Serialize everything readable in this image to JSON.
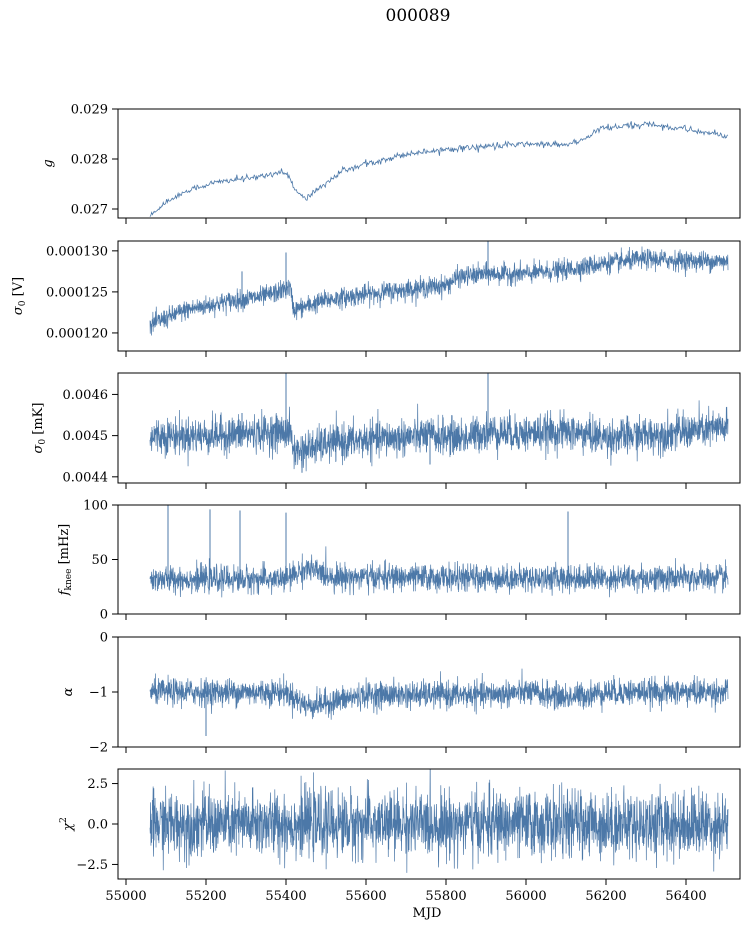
{
  "title": "000089",
  "series_color": "#4c78a8",
  "chart_data": [
    {
      "type": "line",
      "ylabel": "g",
      "ylabel_html": "<tspan font-style='italic'>g</tspan>",
      "xlim": [
        54980,
        56535
      ],
      "ylim": [
        0.02682,
        0.029
      ],
      "yticks": [
        0.027,
        0.028,
        0.029
      ],
      "ytick_labels": [
        "0.027",
        "0.028",
        "0.029"
      ],
      "show_xtick_labels": false,
      "data_x_range": [
        55060,
        56505
      ],
      "trend": [
        [
          55060,
          0.02685
        ],
        [
          55100,
          0.02715
        ],
        [
          55150,
          0.02735
        ],
        [
          55200,
          0.02748
        ],
        [
          55250,
          0.02757
        ],
        [
          55300,
          0.0276
        ],
        [
          55350,
          0.02768
        ],
        [
          55400,
          0.02775
        ],
        [
          55430,
          0.0273
        ],
        [
          55450,
          0.0272
        ],
        [
          55480,
          0.0274
        ],
        [
          55550,
          0.0278
        ],
        [
          55600,
          0.0279
        ],
        [
          55700,
          0.0281
        ],
        [
          55800,
          0.0282
        ],
        [
          55900,
          0.02825
        ],
        [
          56000,
          0.0283
        ],
        [
          56100,
          0.02828
        ],
        [
          56150,
          0.0284
        ],
        [
          56180,
          0.0286
        ],
        [
          56250,
          0.02866
        ],
        [
          56300,
          0.0287
        ],
        [
          56400,
          0.0286
        ],
        [
          56505,
          0.02845
        ]
      ],
      "noise": 3e-05,
      "density": "sparse"
    },
    {
      "type": "line",
      "ylabel": "σ0 [V]",
      "xlim": [
        54980,
        56535
      ],
      "ylim": [
        0.0001178,
        0.0001312
      ],
      "yticks": [
        0.00012,
        0.000125,
        0.00013
      ],
      "ytick_labels": [
        "0.000120",
        "0.000125",
        "0.000130"
      ],
      "show_xtick_labels": false,
      "data_x_range": [
        55060,
        56505
      ],
      "trend": [
        [
          55060,
          0.000121
        ],
        [
          55150,
          0.0001228
        ],
        [
          55250,
          0.0001238
        ],
        [
          55350,
          0.0001245
        ],
        [
          55410,
          0.0001255
        ],
        [
          55420,
          0.0001228
        ],
        [
          55500,
          0.000124
        ],
        [
          55600,
          0.0001247
        ],
        [
          55700,
          0.0001253
        ],
        [
          55800,
          0.0001258
        ],
        [
          55830,
          0.0001268
        ],
        [
          55900,
          0.0001272
        ],
        [
          56000,
          0.0001272
        ],
        [
          56100,
          0.0001277
        ],
        [
          56200,
          0.0001285
        ],
        [
          56300,
          0.000129
        ],
        [
          56400,
          0.0001288
        ],
        [
          56505,
          0.0001287
        ]
      ],
      "noise": 6e-07,
      "density": "dense",
      "spikes": [
        [
          55290,
          0.0001275
        ],
        [
          55400,
          0.0001298
        ],
        [
          55905,
          0.0001312
        ]
      ]
    },
    {
      "type": "line",
      "ylabel": "σ0 [mK]",
      "xlim": [
        54980,
        56535
      ],
      "ylim": [
        0.004385,
        0.004652
      ],
      "yticks": [
        0.0044,
        0.0045,
        0.0046
      ],
      "ytick_labels": [
        "0.0044",
        "0.0045",
        "0.0046"
      ],
      "show_xtick_labels": false,
      "data_x_range": [
        55060,
        56505
      ],
      "trend": [
        [
          55060,
          0.0045
        ],
        [
          55200,
          0.0045
        ],
        [
          55300,
          0.004505
        ],
        [
          55410,
          0.00451
        ],
        [
          55420,
          0.00446
        ],
        [
          55500,
          0.00448
        ],
        [
          55600,
          0.00449
        ],
        [
          55750,
          0.0045
        ],
        [
          55850,
          0.004495
        ],
        [
          55900,
          0.00451
        ],
        [
          56000,
          0.004505
        ],
        [
          56100,
          0.00451
        ],
        [
          56200,
          0.004495
        ],
        [
          56350,
          0.004505
        ],
        [
          56505,
          0.00452
        ]
      ],
      "noise": 2.2e-05,
      "density": "dense",
      "spikes": [
        [
          55290,
          0.004555
        ],
        [
          55400,
          0.004652
        ],
        [
          55905,
          0.004652
        ],
        [
          55760,
          0.00443
        ],
        [
          55440,
          0.00441
        ]
      ]
    },
    {
      "type": "line",
      "ylabel": "fknee [mHz]",
      "xlim": [
        54980,
        56535
      ],
      "ylim": [
        0,
        100
      ],
      "yticks": [
        0,
        50,
        100
      ],
      "ytick_labels": [
        "0",
        "50",
        "100"
      ],
      "show_xtick_labels": false,
      "data_x_range": [
        55060,
        56505
      ],
      "trend": [
        [
          55060,
          32
        ],
        [
          55400,
          32
        ],
        [
          55450,
          42
        ],
        [
          55520,
          34
        ],
        [
          55900,
          33
        ],
        [
          56505,
          33
        ]
      ],
      "noise": 6,
      "density": "dense",
      "spikes": [
        [
          55105,
          100
        ],
        [
          55210,
          96
        ],
        [
          55285,
          95
        ],
        [
          55400,
          93
        ],
        [
          56105,
          94
        ]
      ]
    },
    {
      "type": "line",
      "ylabel": "α",
      "xlim": [
        54980,
        56535
      ],
      "ylim": [
        -2,
        0
      ],
      "yticks": [
        -2,
        -1,
        0
      ],
      "ytick_labels": [
        "−2",
        "−1",
        "0"
      ],
      "show_xtick_labels": false,
      "data_x_range": [
        55060,
        56505
      ],
      "trend": [
        [
          55060,
          -1.0
        ],
        [
          55400,
          -1.0
        ],
        [
          55450,
          -1.25
        ],
        [
          55500,
          -1.2
        ],
        [
          55600,
          -1.05
        ],
        [
          55900,
          -1.05
        ],
        [
          56000,
          -1.0
        ],
        [
          56100,
          -1.1
        ],
        [
          56200,
          -1.0
        ],
        [
          56505,
          -1.0
        ]
      ],
      "noise": 0.12,
      "density": "dense",
      "spikes": [
        [
          55200,
          -1.8
        ]
      ]
    },
    {
      "type": "line",
      "ylabel": "χ2",
      "xlim": [
        54980,
        56535
      ],
      "ylim": [
        -3.4,
        3.4
      ],
      "yticks": [
        -2.5,
        0.0,
        2.5
      ],
      "ytick_labels": [
        "−2.5",
        "0.0",
        "2.5"
      ],
      "show_xtick_labels": true,
      "xticks": [
        55000,
        55200,
        55400,
        55600,
        55800,
        56000,
        56200,
        56400
      ],
      "xtick_labels": [
        "55000",
        "55200",
        "55400",
        "55600",
        "55800",
        "56000",
        "56200",
        "56400"
      ],
      "xlabel": "MJD",
      "data_x_range": [
        55060,
        56505
      ],
      "trend": [
        [
          55060,
          0
        ],
        [
          56505,
          0
        ]
      ],
      "noise": 1.0,
      "density": "dense"
    }
  ]
}
